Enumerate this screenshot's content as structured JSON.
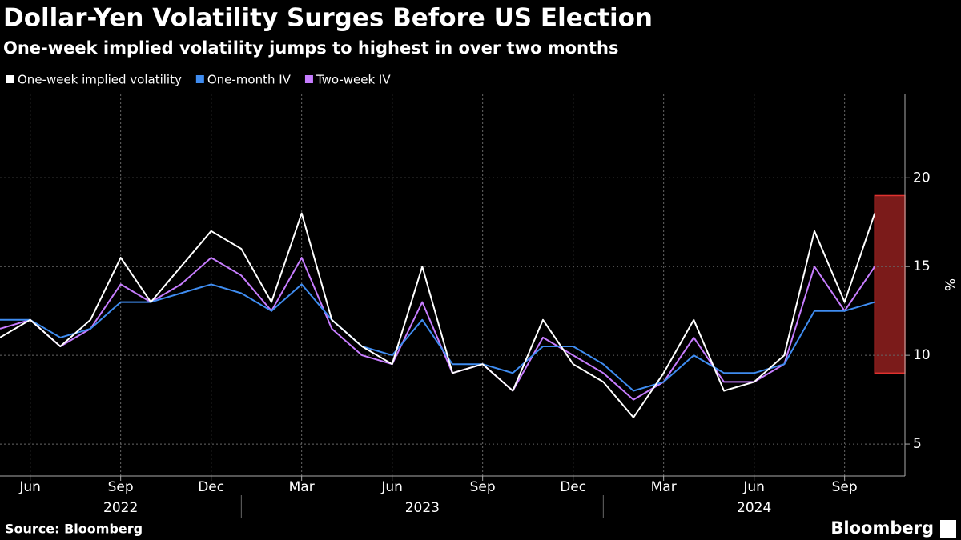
{
  "chart_data": {
    "type": "line",
    "title": "Dollar-Yen Volatility Surges Before US Election",
    "subtitle": "One-week implied volatility jumps to highest in over two months",
    "y_label": "%",
    "source": "Source: Bloomberg",
    "brand": "Bloomberg",
    "x": [
      "2022-05",
      "2022-06",
      "2022-07",
      "2022-08",
      "2022-09",
      "2022-10",
      "2022-11",
      "2022-12",
      "2023-01",
      "2023-02",
      "2023-03",
      "2023-04",
      "2023-05",
      "2023-06",
      "2023-07",
      "2023-08",
      "2023-09",
      "2023-10",
      "2023-11",
      "2023-12",
      "2024-01",
      "2024-02",
      "2024-03",
      "2024-04",
      "2024-05",
      "2024-06",
      "2024-07",
      "2024-08",
      "2024-09",
      "2024-10"
    ],
    "series": [
      {
        "name": "One-week implied volatility",
        "color": "#ffffff",
        "values": [
          11,
          12,
          10.5,
          12,
          15.5,
          13,
          15,
          17,
          16,
          13,
          18,
          12,
          10.5,
          9.5,
          15,
          9,
          9.5,
          8,
          12,
          9.5,
          8.5,
          6.5,
          9,
          12,
          8,
          8.5,
          10,
          17,
          13,
          18
        ]
      },
      {
        "name": "One-month IV",
        "color": "#3f8cf0",
        "values": [
          12,
          12,
          11,
          11.5,
          13,
          13,
          13.5,
          14,
          13.5,
          12.5,
          14,
          12,
          10.5,
          10,
          12,
          9.5,
          9.5,
          9,
          10.5,
          10.5,
          9.5,
          8,
          8.5,
          10,
          9,
          9,
          9.5,
          12.5,
          12.5,
          13
        ]
      },
      {
        "name": "Two-week IV",
        "color": "#c77dff",
        "values": [
          11.5,
          12,
          10.5,
          11.5,
          14,
          13,
          14,
          15.5,
          14.5,
          12.5,
          15.5,
          11.5,
          10,
          9.5,
          13,
          9,
          9.5,
          8,
          11,
          10,
          9,
          7.5,
          8.5,
          11,
          8.5,
          8.5,
          9.5,
          15,
          12.5,
          15
        ]
      }
    ],
    "xlim": [
      "2022-05",
      "2024-11"
    ],
    "xticks": [
      {
        "value": "2022-06",
        "label": "Jun"
      },
      {
        "value": "2022-09",
        "label": "Sep"
      },
      {
        "value": "2022-12",
        "label": "Dec"
      },
      {
        "value": "2023-03",
        "label": "Mar"
      },
      {
        "value": "2023-06",
        "label": "Jun"
      },
      {
        "value": "2023-09",
        "label": "Sep"
      },
      {
        "value": "2023-12",
        "label": "Dec"
      },
      {
        "value": "2024-03",
        "label": "Mar"
      },
      {
        "value": "2024-06",
        "label": "Jun"
      },
      {
        "value": "2024-09",
        "label": "Sep"
      }
    ],
    "years": [
      "2022",
      "2023",
      "2024"
    ],
    "ylim": [
      3.2,
      24.7
    ],
    "yticks": [
      5,
      10,
      15,
      20
    ],
    "grid": true,
    "highlight": {
      "x": [
        "2024-10",
        "2024-11"
      ],
      "y": [
        9,
        19
      ],
      "color": "#e0322f"
    }
  }
}
